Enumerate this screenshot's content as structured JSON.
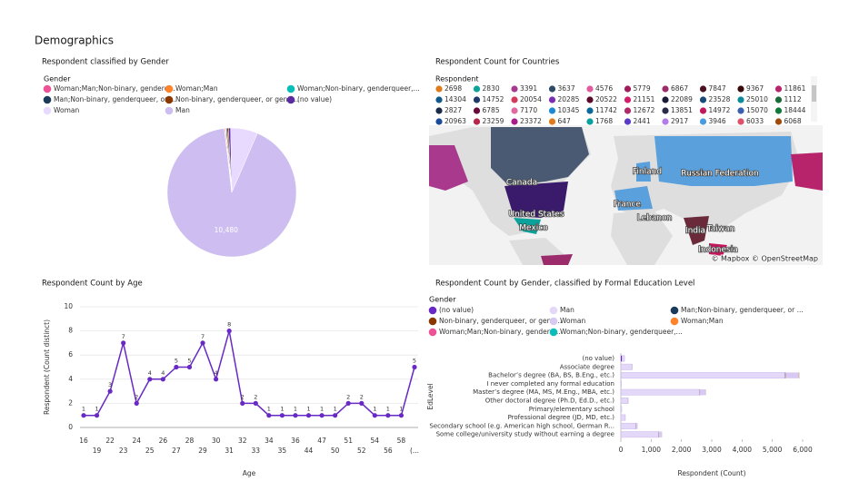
{
  "title": "Demographics",
  "chart_data": [
    {
      "type": "pie",
      "title": "Respondent classified by Gender",
      "legend_title": "Gender",
      "categories": [
        "Woman;Man;Non-binary, genderq...",
        "Woman;Man",
        "Woman;Non-binary, genderqueer,...",
        "Man;Non-binary, genderqueer, or ...",
        "Non-binary, genderqueer, or gend...",
        "(no value)",
        "Woman",
        "Man"
      ],
      "values": [
        8,
        25,
        12,
        30,
        40,
        60,
        780,
        10480
      ],
      "value_labels": [
        null,
        null,
        null,
        null,
        null,
        null,
        null,
        "10,480"
      ],
      "colors": [
        "#ee5396",
        "#ff832b",
        "#08bdba",
        "#1c3a5a",
        "#8a3800",
        "#5a2ca0",
        "#e8daff",
        "#cdbdf0"
      ]
    },
    {
      "type": "map",
      "title": "Respondent Count for Countries",
      "legend_title": "Respondent",
      "values": [
        2698,
        2830,
        3391,
        3637,
        4576,
        5779,
        6867,
        7847,
        9367,
        11861,
        14304,
        14752,
        20054,
        20285,
        20522,
        21151,
        22089,
        23528,
        25010,
        1112,
        2827,
        6785,
        7170,
        10345,
        11742,
        12672,
        13851,
        14972,
        15070,
        18444,
        20963,
        23259,
        23372,
        647,
        1768,
        2441,
        2917,
        3946,
        6033,
        6068
      ],
      "colors": [
        "#e07b1a",
        "#0aa39c",
        "#a8398d",
        "#2e4a66",
        "#e05b9b",
        "#a11a5a",
        "#9b2b6a",
        "#4a1020",
        "#3a0a0a",
        "#b8246c",
        "#0f5a8a",
        "#1e3a6a",
        "#d43a5a",
        "#7a2db0",
        "#5a0a2a",
        "#d41e6a",
        "#1a1a3a",
        "#1a4a7a",
        "#0a8a9a",
        "#1a6a3a",
        "#1a2a4a",
        "#6a0a3a",
        "#e06aa0",
        "#1a8ad4",
        "#0a6a9a",
        "#b02a6a",
        "#2a2a4a",
        "#c2185b",
        "#3a60b0",
        "#0f7a3a",
        "#1a4a9a",
        "#b8244a",
        "#a81c8a",
        "#e07a1a",
        "#0aa0a0",
        "#5a3ac8",
        "#b57aea",
        "#4a9ae0",
        "#e0506a",
        "#a04a0a"
      ],
      "map_labels": [
        "Canada",
        "United States",
        "Mexico",
        "Russian Federation",
        "Finland",
        "France",
        "Lebanon",
        "India",
        "Taiwan",
        "Indonesia"
      ],
      "attribution": "© Mapbox © OpenStreetMap"
    },
    {
      "type": "line",
      "title": "Respondent Count by Age",
      "x_label": "Age",
      "y_label": "Respondent (Count distinct)",
      "categories": [
        "16",
        "19",
        "22",
        "23",
        "24",
        "25",
        "26",
        "27",
        "28",
        "29",
        "30",
        "31",
        "32",
        "33",
        "34",
        "35",
        "36",
        "44",
        "47",
        "50",
        "51",
        "52",
        "54",
        "56",
        "58",
        "(..."
      ],
      "values": [
        1,
        1,
        3,
        7,
        2,
        4,
        4,
        5,
        5,
        7,
        4,
        8,
        2,
        2,
        1,
        1,
        1,
        1,
        1,
        1,
        2,
        2,
        1,
        1,
        1,
        5
      ],
      "color": "#6929c4",
      "ylim": [
        0,
        10
      ],
      "yticks": [
        0,
        2,
        4,
        6,
        8,
        10
      ],
      "grid": true
    },
    {
      "type": "bar",
      "orientation": "horizontal",
      "stacked": true,
      "title": "Respondent Count by Gender, classified by Formal Education Level",
      "legend_title": "Gender",
      "x_label": "Respondent (Count)",
      "y_label": "EdLevel",
      "categories": [
        "(no value)",
        "Associate degree",
        "Bachelor’s degree (BA, BS, B.Eng., etc.)",
        "I never completed any formal education",
        "Master’s degree (MA, MS, M.Eng., MBA, etc.)",
        "Other doctoral degree (Ph.D, Ed.D., etc.)",
        "Primary/elementary school",
        "Professional degree (JD, MD, etc.)",
        "Secondary school (e.g. American high school, German R...",
        "Some college/university study without earning a degree"
      ],
      "series": [
        {
          "name": "(no value)",
          "color": "#6929c4",
          "values": [
            40,
            2,
            8,
            0,
            4,
            1,
            0,
            1,
            2,
            3
          ]
        },
        {
          "name": "Man",
          "color": "#e4d8f8",
          "values": [
            80,
            360,
            5412,
            20,
            2600,
            230,
            30,
            140,
            500,
            1250
          ]
        },
        {
          "name": "Man;Non-binary, genderqueer, or ...",
          "color": "#1c3a5a",
          "values": [
            0,
            1,
            6,
            0,
            3,
            1,
            0,
            0,
            2,
            2
          ]
        },
        {
          "name": "Non-binary, genderqueer, or gend...",
          "color": "#8a3800",
          "values": [
            1,
            2,
            14,
            0,
            8,
            1,
            0,
            1,
            5,
            8
          ]
        },
        {
          "name": "Woman",
          "color": "#d8c8f4",
          "values": [
            10,
            20,
            430,
            2,
            180,
            20,
            3,
            15,
            40,
            90
          ]
        },
        {
          "name": "Woman;Man",
          "color": "#ff832b",
          "values": [
            0,
            1,
            12,
            0,
            6,
            1,
            0,
            1,
            2,
            2
          ]
        },
        {
          "name": "Woman;Man;Non-binary, genderq...",
          "color": "#ee5396",
          "values": [
            0,
            0,
            3,
            0,
            2,
            0,
            0,
            0,
            1,
            1
          ]
        },
        {
          "name": "Woman;Non-binary, genderqueer,...",
          "color": "#08bdba",
          "values": [
            0,
            1,
            5,
            0,
            3,
            1,
            0,
            0,
            1,
            2
          ]
        }
      ],
      "xlim": [
        0,
        6000
      ],
      "xticks": [
        0,
        {
          "value": 1000,
          "label": "1,000"
        },
        {
          "value": 2000,
          "label": "2,000"
        },
        {
          "value": 3000,
          "label": "3,000"
        },
        {
          "value": 4000,
          "label": "4,000"
        },
        {
          "value": 5000,
          "label": "5,000"
        },
        {
          "value": 6000,
          "label": "6,000"
        }
      ]
    }
  ]
}
